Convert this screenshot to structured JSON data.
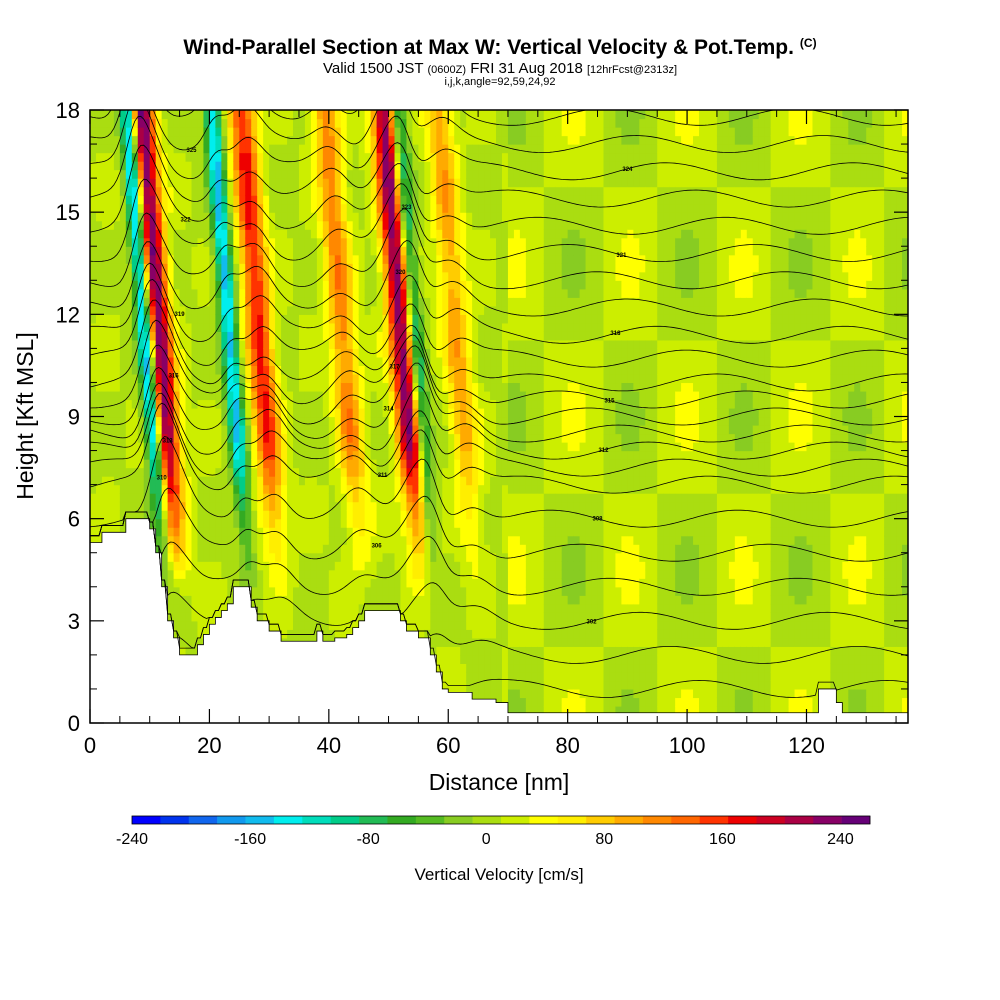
{
  "header": {
    "title": "Wind-Parallel Section at Max W: Vertical Velocity & Pot.Temp.",
    "title_mark": "(C)",
    "valid_a": "Valid 1500 JST",
    "valid_utc": "(0600Z)",
    "valid_b": "FRI 31 Aug 2018",
    "forecast": "[12hrFcst@2313z]",
    "grid_info": "i,j,k,angle=92,59,24,92"
  },
  "chart_data": {
    "type": "heatmap",
    "title": "Wind-Parallel Section at Max W: Vertical Velocity & Pot.Temp.",
    "xlabel": "Distance [nm]",
    "ylabel": "Height [Kft MSL]",
    "xlim": [
      0,
      137
    ],
    "ylim": [
      0,
      18
    ],
    "x_ticks": [
      0,
      20,
      40,
      60,
      80,
      100,
      120
    ],
    "y_ticks": [
      0,
      3,
      6,
      9,
      12,
      15,
      18
    ],
    "colorbar": {
      "label": "Vertical Velocity [cm/s]",
      "range": [
        -240,
        260
      ],
      "tick_values": [
        -240,
        -160,
        -80,
        0,
        80,
        160,
        240
      ],
      "colors": [
        "#0000ff",
        "#0033ee",
        "#1166ee",
        "#1199ee",
        "#11bbee",
        "#00eeee",
        "#00ddbb",
        "#00cc88",
        "#22bb55",
        "#33aa22",
        "#55bb22",
        "#88cc22",
        "#aadd11",
        "#ccee00",
        "#ffff00",
        "#ffee00",
        "#ffcc00",
        "#ffaa00",
        "#ff8800",
        "#ff6600",
        "#ff3300",
        "#ee0000",
        "#cc0022",
        "#aa0044",
        "#880066",
        "#660077"
      ]
    },
    "updrafts": [
      {
        "x": 12,
        "peak_cm_s": 250
      },
      {
        "x": 29,
        "peak_cm_s": 160
      },
      {
        "x": 43,
        "peak_cm_s": 110
      },
      {
        "x": 53,
        "peak_cm_s": 240
      },
      {
        "x": 62,
        "peak_cm_s": 90
      }
    ],
    "downdrafts": [
      {
        "x": 10,
        "peak_cm_s": -240
      },
      {
        "x": 24,
        "peak_cm_s": -160
      },
      {
        "x": 55,
        "peak_cm_s": -160
      }
    ],
    "terrain_kft": [
      [
        0,
        5.3
      ],
      [
        1,
        5.3
      ],
      [
        2,
        5.6
      ],
      [
        5,
        5.6
      ],
      [
        6,
        6.0
      ],
      [
        9,
        6.0
      ],
      [
        10,
        5.7
      ],
      [
        11,
        5.0
      ],
      [
        12,
        4.0
      ],
      [
        13,
        3.0
      ],
      [
        14,
        2.5
      ],
      [
        15,
        2.0
      ],
      [
        17,
        2.0
      ],
      [
        18,
        2.3
      ],
      [
        19,
        2.6
      ],
      [
        20,
        2.9
      ],
      [
        21,
        3.1
      ],
      [
        22,
        3.3
      ],
      [
        23,
        3.5
      ],
      [
        24,
        4.0
      ],
      [
        26,
        4.0
      ],
      [
        27,
        3.4
      ],
      [
        28,
        3.0
      ],
      [
        30,
        2.7
      ],
      [
        32,
        2.4
      ],
      [
        37,
        2.4
      ],
      [
        38,
        2.7
      ],
      [
        39,
        2.4
      ],
      [
        41,
        2.5
      ],
      [
        43,
        2.6
      ],
      [
        44,
        2.8
      ],
      [
        45,
        3.0
      ],
      [
        46,
        3.3
      ],
      [
        51,
        3.3
      ],
      [
        52,
        3.0
      ],
      [
        53,
        2.7
      ],
      [
        55,
        2.5
      ],
      [
        57,
        2.0
      ],
      [
        58,
        1.5
      ],
      [
        59,
        1.0
      ],
      [
        60,
        0.9
      ],
      [
        63,
        0.9
      ],
      [
        64,
        0.7
      ],
      [
        68,
        0.6
      ],
      [
        70,
        0.3
      ],
      [
        121,
        0.3
      ],
      [
        122,
        1.0
      ],
      [
        124,
        1.0
      ],
      [
        125,
        0.6
      ],
      [
        126,
        0.3
      ],
      [
        137,
        0.3
      ]
    ],
    "theta_contours": [
      {
        "y0": 1.0,
        "label": "298"
      },
      {
        "y0": 2.0,
        "label": "300"
      },
      {
        "y0": 3.0,
        "label": "302"
      },
      {
        "y0": 4.0,
        "label": "304"
      },
      {
        "y0": 5.0,
        "label": "306"
      },
      {
        "y0": 6.0,
        "label": "308"
      },
      {
        "y0": 7.0,
        "label": "310"
      },
      {
        "y0": 7.5,
        "label": "311"
      },
      {
        "y0": 8.0,
        "label": "312"
      },
      {
        "y0": 8.5,
        "label": "313"
      },
      {
        "y0": 9.0,
        "label": "314"
      },
      {
        "y0": 9.5,
        "label": "315"
      },
      {
        "y0": 10.0,
        "label": "316"
      },
      {
        "y0": 10.7,
        "label": "317"
      },
      {
        "y0": 11.4,
        "label": "318"
      },
      {
        "y0": 12.2,
        "label": "319"
      },
      {
        "y0": 13.0,
        "label": "320"
      },
      {
        "y0": 13.8,
        "label": "321"
      },
      {
        "y0": 14.6,
        "label": "322"
      },
      {
        "y0": 15.4,
        "label": "323"
      },
      {
        "y0": 16.2,
        "label": "324"
      },
      {
        "y0": 17.0,
        "label": "325"
      },
      {
        "y0": 17.8,
        "label": "326"
      }
    ]
  }
}
